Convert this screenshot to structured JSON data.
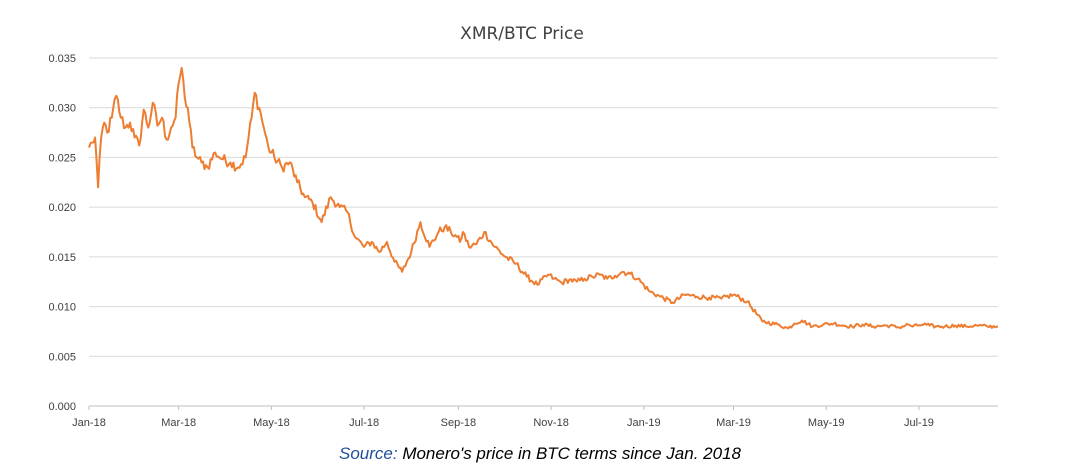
{
  "chart_data": {
    "type": "line",
    "title": "XMR/BTC Price",
    "xlabel": "",
    "ylabel": "",
    "ylim": [
      0,
      0.035
    ],
    "y_ticks": [
      "0.000",
      "0.005",
      "0.010",
      "0.015",
      "0.020",
      "0.025",
      "0.030",
      "0.035"
    ],
    "x_ticks": [
      "Jan-18",
      "Mar-18",
      "May-18",
      "Jul-18",
      "Sep-18",
      "Nov-18",
      "Jan-19",
      "Mar-19",
      "May-19",
      "Jul-19"
    ],
    "x_tick_dates": [
      "2018-01-01",
      "2018-03-01",
      "2018-05-01",
      "2018-07-01",
      "2018-09-01",
      "2018-11-01",
      "2019-01-01",
      "2019-03-01",
      "2019-05-01",
      "2019-07-01"
    ],
    "xlim": [
      "2018-01-01",
      "2019-08-22"
    ],
    "grid": "horizontal",
    "legend": "none",
    "series": [
      {
        "color": "#ed7d31",
        "x": [
          "2018-01-01",
          "2018-01-03",
          "2018-01-05",
          "2018-01-07",
          "2018-01-09",
          "2018-01-11",
          "2018-01-13",
          "2018-01-16",
          "2018-01-19",
          "2018-01-22",
          "2018-01-25",
          "2018-01-28",
          "2018-01-31",
          "2018-02-03",
          "2018-02-06",
          "2018-02-09",
          "2018-02-12",
          "2018-02-15",
          "2018-02-18",
          "2018-02-21",
          "2018-02-24",
          "2018-02-27",
          "2018-03-01",
          "2018-03-03",
          "2018-03-05",
          "2018-03-07",
          "2018-03-10",
          "2018-03-13",
          "2018-03-16",
          "2018-03-20",
          "2018-03-25",
          "2018-03-30",
          "2018-04-04",
          "2018-04-09",
          "2018-04-14",
          "2018-04-18",
          "2018-04-20",
          "2018-04-23",
          "2018-04-26",
          "2018-04-29",
          "2018-05-03",
          "2018-05-08",
          "2018-05-13",
          "2018-05-18",
          "2018-05-23",
          "2018-05-28",
          "2018-06-03",
          "2018-06-09",
          "2018-06-15",
          "2018-06-20",
          "2018-06-25",
          "2018-07-01",
          "2018-07-06",
          "2018-07-11",
          "2018-07-16",
          "2018-07-21",
          "2018-07-26",
          "2018-08-01",
          "2018-08-07",
          "2018-08-13",
          "2018-08-19",
          "2018-08-23",
          "2018-08-27",
          "2018-08-31",
          "2018-09-02",
          "2018-09-04",
          "2018-09-08",
          "2018-09-13",
          "2018-09-18",
          "2018-09-25",
          "2018-10-02",
          "2018-10-09",
          "2018-10-16",
          "2018-10-23",
          "2018-10-30",
          "2018-11-03",
          "2018-11-08",
          "2018-11-13",
          "2018-11-18",
          "2018-11-23",
          "2018-11-28",
          "2018-12-03",
          "2018-12-08",
          "2018-12-13",
          "2018-12-18",
          "2018-12-23",
          "2018-12-28",
          "2019-01-05",
          "2019-01-12",
          "2019-01-20",
          "2019-01-28",
          "2019-02-05",
          "2019-02-13",
          "2019-02-21",
          "2019-03-01",
          "2019-03-10",
          "2019-03-20",
          "2019-03-30",
          "2019-04-06",
          "2019-04-10",
          "2019-04-15",
          "2019-04-22",
          "2019-04-29",
          "2019-05-06",
          "2019-05-12",
          "2019-05-18",
          "2019-05-25",
          "2019-06-01",
          "2019-06-10",
          "2019-06-18",
          "2019-06-24",
          "2019-06-27",
          "2019-06-30",
          "2019-07-04",
          "2019-07-08",
          "2019-07-12",
          "2019-07-18",
          "2019-07-25",
          "2019-08-01",
          "2019-08-08",
          "2019-08-15",
          "2019-08-22"
        ],
        "y": [
          0.026,
          0.0265,
          0.027,
          0.022,
          0.027,
          0.0285,
          0.0275,
          0.029,
          0.0312,
          0.029,
          0.028,
          0.0285,
          0.027,
          0.0262,
          0.0298,
          0.028,
          0.0305,
          0.0282,
          0.029,
          0.0268,
          0.028,
          0.029,
          0.0325,
          0.034,
          0.031,
          0.03,
          0.026,
          0.025,
          0.0245,
          0.024,
          0.0255,
          0.0248,
          0.0245,
          0.024,
          0.025,
          0.029,
          0.0315,
          0.03,
          0.028,
          0.026,
          0.025,
          0.024,
          0.0245,
          0.0225,
          0.021,
          0.0205,
          0.0185,
          0.021,
          0.02,
          0.0195,
          0.017,
          0.016,
          0.0165,
          0.0155,
          0.0165,
          0.0145,
          0.0135,
          0.0155,
          0.0185,
          0.016,
          0.0175,
          0.018,
          0.0175,
          0.017,
          0.0165,
          0.0175,
          0.016,
          0.0163,
          0.0175,
          0.016,
          0.015,
          0.0143,
          0.013,
          0.0122,
          0.0132,
          0.0128,
          0.0124,
          0.0127,
          0.0125,
          0.0128,
          0.013,
          0.0132,
          0.0128,
          0.0131,
          0.0135,
          0.0133,
          0.0128,
          0.0115,
          0.011,
          0.0104,
          0.0112,
          0.011,
          0.0109,
          0.0108,
          0.0112,
          0.0105,
          0.0085,
          0.0082,
          0.0078,
          0.0083,
          0.0086,
          0.008,
          0.0082,
          0.0083,
          0.0081,
          0.008,
          0.0082,
          0.008,
          0.0081,
          0.0079,
          0.0082,
          0.008,
          0.0081,
          0.0082,
          0.0081,
          0.008,
          0.008,
          0.0081,
          0.008,
          0.0081,
          0.008,
          0.008
        ]
      }
    ]
  },
  "caption": {
    "source_label": "Source:",
    "text": " Monero's price in BTC terms since Jan. 2018"
  }
}
